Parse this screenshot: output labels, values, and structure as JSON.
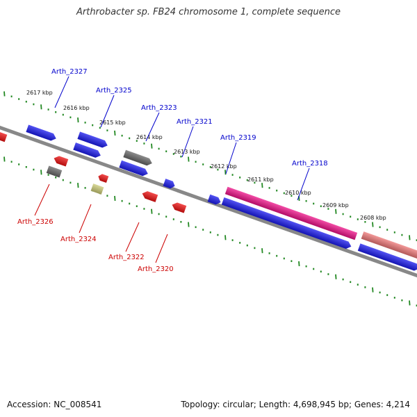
{
  "title": "Arthrobacter sp. FB24 chromosome 1, complete sequence",
  "footer": {
    "accession": "Accession: NC_008541",
    "topology": "Topology: circular; Length: 4,698,945 bp; Genes: 4,214"
  },
  "colors": {
    "forward_label": "#0000cc",
    "reverse_label": "#cc0000",
    "backbone": "#888888",
    "ticks": "#228822",
    "cds_blue": "#1a1aee",
    "cds_red": "#ee1111",
    "cds_gray": "#666666",
    "cds_khaki": "#cccc77",
    "rrna_pink": "#ee1188",
    "rrna_salmon": "#ee7777"
  },
  "ticks": [
    {
      "label": "2617 kbp"
    },
    {
      "label": "2616 kbp"
    },
    {
      "label": "2615 kbp"
    },
    {
      "label": "2614 kbp"
    },
    {
      "label": "2613 kbp"
    },
    {
      "label": "2612 kbp"
    },
    {
      "label": "2611 kbp"
    },
    {
      "label": "2610 kbp"
    },
    {
      "label": "2609 kbp"
    },
    {
      "label": "2608 kbp"
    }
  ],
  "forward_labels": [
    {
      "name": "Arth_2327"
    },
    {
      "name": "Arth_2325"
    },
    {
      "name": "Arth_2323"
    },
    {
      "name": "Arth_2321"
    },
    {
      "name": "Arth_2319"
    },
    {
      "name": "Arth_2318"
    }
  ],
  "reverse_labels": [
    {
      "name": "Arth_2326"
    },
    {
      "name": "Arth_2324"
    },
    {
      "name": "Arth_2322"
    },
    {
      "name": "Arth_2320"
    }
  ]
}
